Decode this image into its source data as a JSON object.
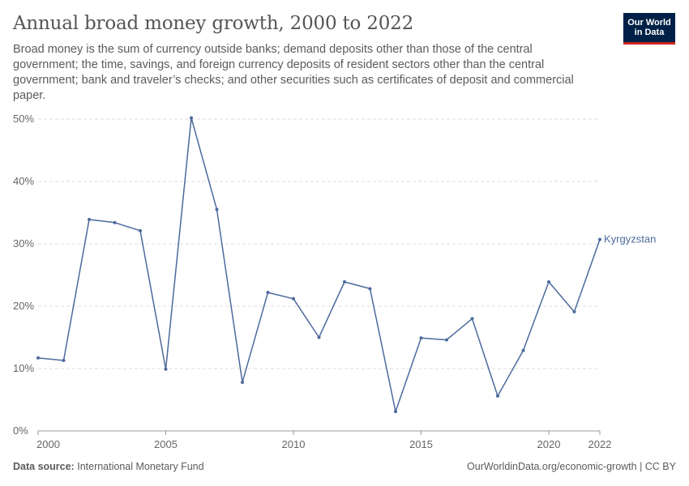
{
  "header": {
    "title": "Annual broad money growth, 2000 to 2022",
    "subtitle": "Broad money is the sum of currency outside banks; demand deposits other than those of the central government; the time, savings, and foreign currency deposits of resident sectors other than the central government; bank and traveler’s checks; and other securities such as certificates of deposit and commercial paper."
  },
  "logo": {
    "line1": "Our World",
    "line2": "in Data"
  },
  "footer": {
    "source_label": "Data source:",
    "source_value": "International Monetary Fund",
    "url": "OurWorldinData.org/economic-growth | CC BY"
  },
  "colors": {
    "series": "#4c6a9c",
    "grid": "#dddddd",
    "axis": "#999999"
  },
  "chart_data": {
    "type": "line",
    "title": "Annual broad money growth, 2000 to 2022",
    "xlabel": "",
    "ylabel": "",
    "xlim": [
      2000,
      2022
    ],
    "ylim": [
      0,
      50
    ],
    "y_ticks": [
      0,
      10,
      20,
      30,
      40,
      50
    ],
    "y_tick_labels": [
      "0%",
      "10%",
      "20%",
      "30%",
      "40%",
      "50%"
    ],
    "x_ticks": [
      2000,
      2005,
      2010,
      2015,
      2020,
      2022
    ],
    "x_tick_labels": [
      "2000",
      "2005",
      "2010",
      "2015",
      "2020",
      "2022"
    ],
    "grid": true,
    "series": [
      {
        "name": "Kyrgyzstan",
        "x": [
          2000,
          2001,
          2002,
          2003,
          2004,
          2005,
          2006,
          2007,
          2008,
          2009,
          2010,
          2011,
          2012,
          2013,
          2014,
          2015,
          2016,
          2017,
          2018,
          2019,
          2020,
          2021,
          2022
        ],
        "values": [
          11.7,
          11.3,
          33.9,
          33.4,
          32.1,
          9.9,
          50.2,
          35.5,
          7.8,
          22.2,
          21.2,
          15.0,
          23.9,
          22.8,
          3.1,
          14.9,
          14.6,
          18.0,
          5.6,
          12.9,
          23.9,
          19.1,
          30.7
        ]
      }
    ]
  }
}
